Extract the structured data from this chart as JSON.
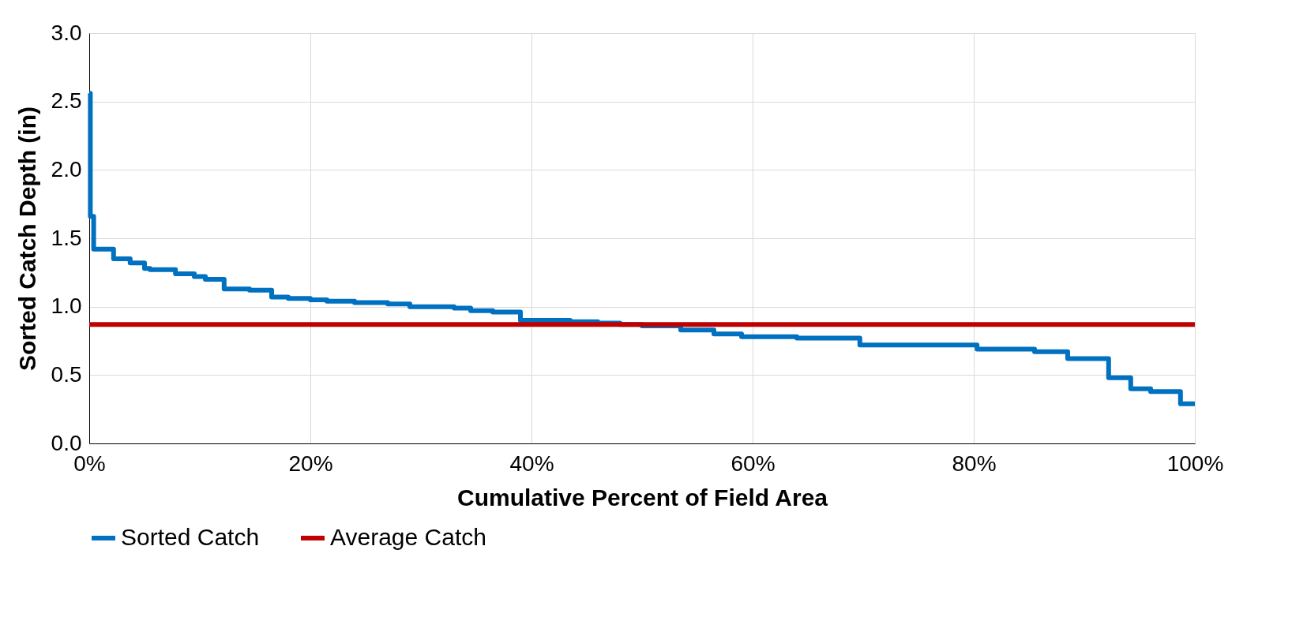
{
  "chart_data": {
    "type": "step",
    "xlabel": "Cumulative Percent of Field Area",
    "ylabel": "Sorted Catch Depth (in)",
    "xlim": [
      0,
      100
    ],
    "ylim": [
      0,
      3.0
    ],
    "xticks": [
      {
        "value": 0,
        "label": "0%"
      },
      {
        "value": 20,
        "label": "20%"
      },
      {
        "value": 40,
        "label": "40%"
      },
      {
        "value": 60,
        "label": "60%"
      },
      {
        "value": 80,
        "label": "80%"
      },
      {
        "value": 100,
        "label": "100%"
      }
    ],
    "yticks": [
      {
        "value": 0,
        "label": "0.0"
      },
      {
        "value": 0.5,
        "label": "0.5"
      },
      {
        "value": 1.0,
        "label": "1.0"
      },
      {
        "value": 1.5,
        "label": "1.5"
      },
      {
        "value": 2.0,
        "label": "2.0"
      },
      {
        "value": 2.5,
        "label": "2.5"
      },
      {
        "value": 3.0,
        "label": "3.0"
      }
    ],
    "grid": true,
    "legend": "bottom",
    "series": [
      {
        "name": "Sorted Catch",
        "color": "#0070c0",
        "x": [
          0,
          0.1,
          0.4,
          2.2,
          3.7,
          5,
          5.5,
          7.8,
          9.5,
          10.5,
          12.2,
          14.5,
          16.5,
          18,
          20,
          21.5,
          24,
          27,
          29,
          33,
          34.5,
          36.5,
          39,
          43.5,
          46,
          48,
          50,
          53.5,
          56.5,
          59,
          64,
          69.7,
          80.3,
          85.5,
          88.5,
          92.2,
          94.2,
          96,
          98.7,
          100
        ],
        "values": [
          2.56,
          1.66,
          1.42,
          1.35,
          1.32,
          1.28,
          1.27,
          1.24,
          1.22,
          1.2,
          1.13,
          1.12,
          1.07,
          1.06,
          1.05,
          1.04,
          1.03,
          1.02,
          1.0,
          0.99,
          0.97,
          0.96,
          0.9,
          0.89,
          0.88,
          0.87,
          0.86,
          0.83,
          0.8,
          0.78,
          0.77,
          0.72,
          0.69,
          0.67,
          0.62,
          0.48,
          0.4,
          0.38,
          0.29,
          0.29
        ]
      },
      {
        "name": "Average Catch",
        "color": "#c00000",
        "type": "line",
        "x": [
          0,
          100
        ],
        "values": [
          0.87,
          0.87
        ]
      }
    ]
  }
}
